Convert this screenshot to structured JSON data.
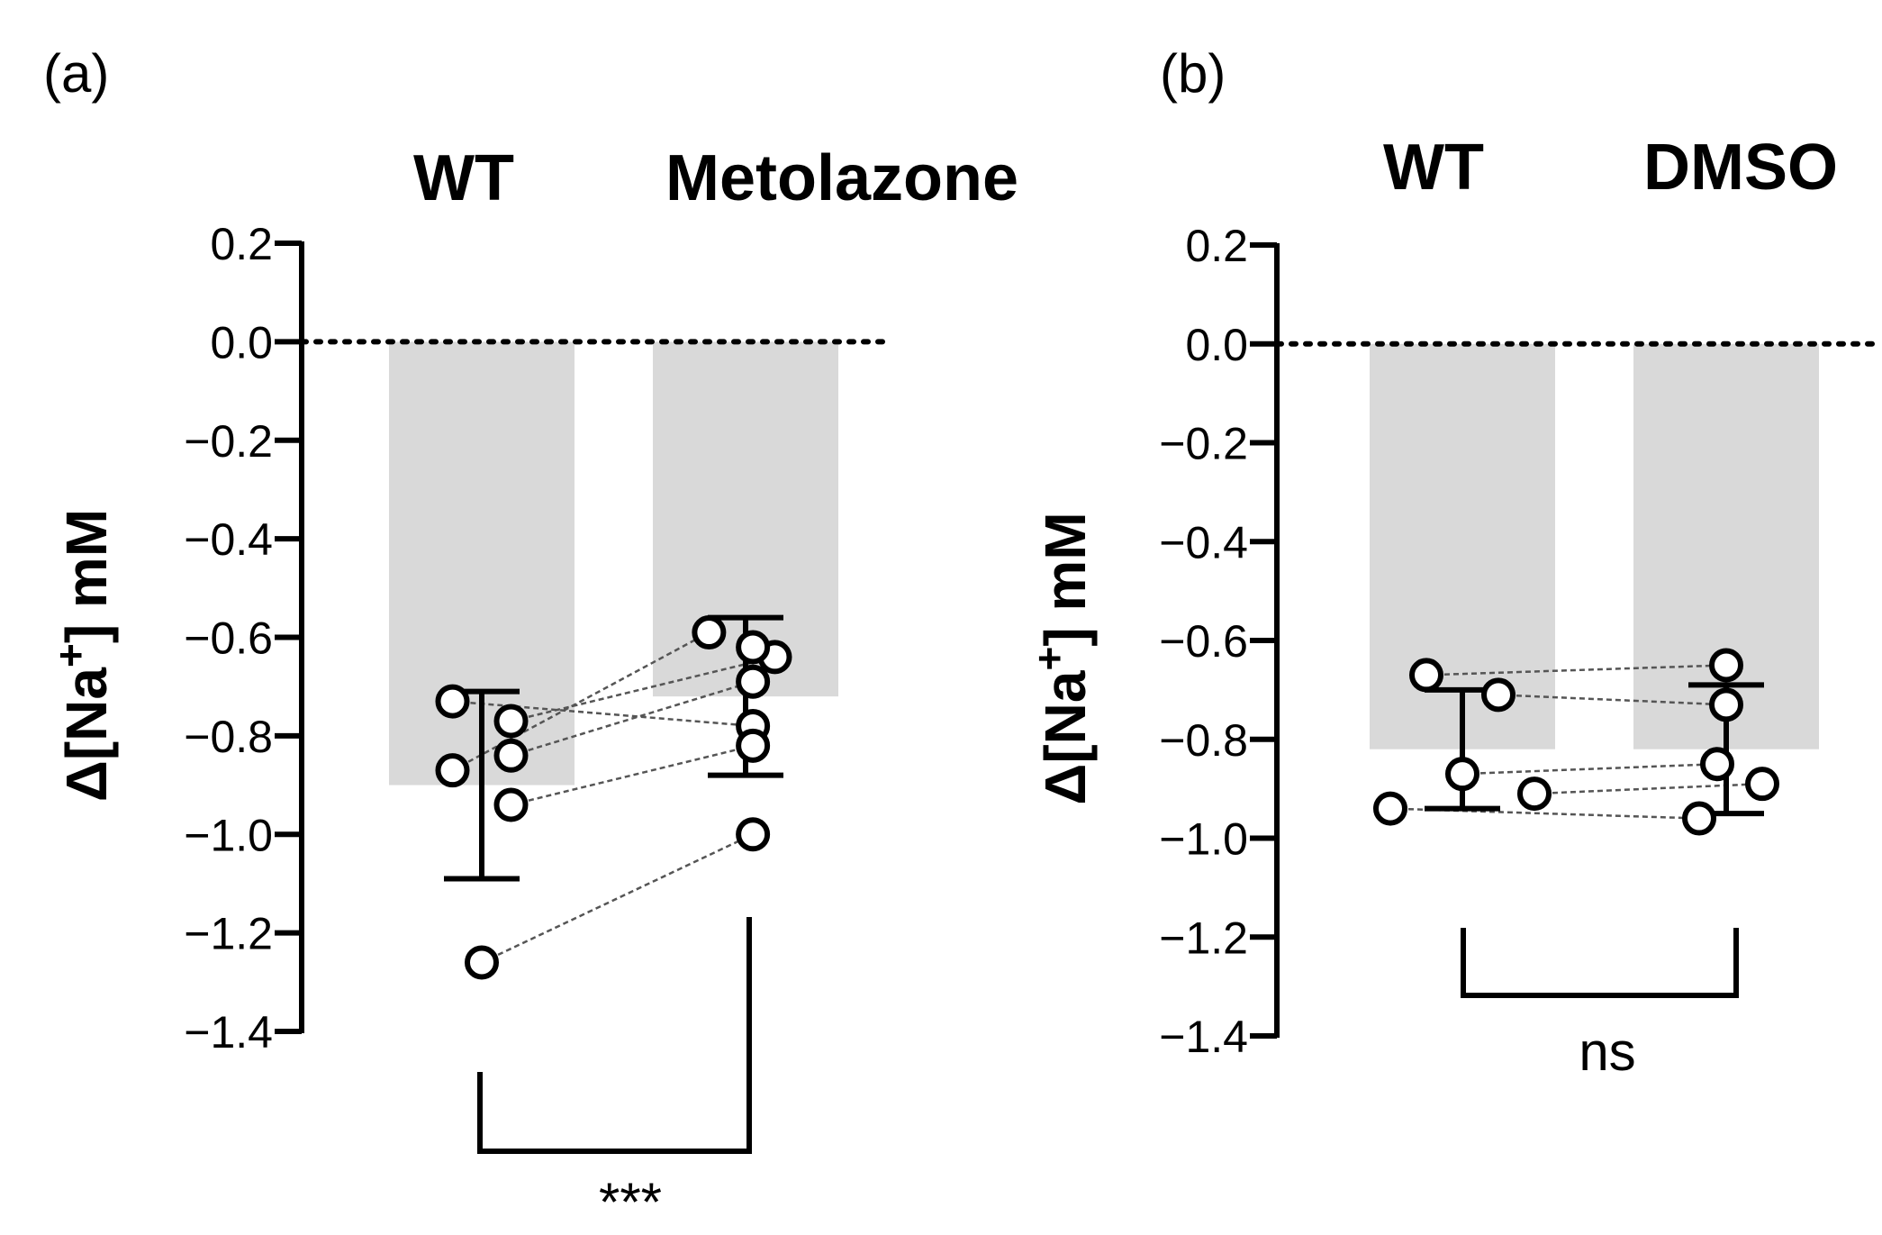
{
  "chart_data": [
    {
      "type": "bar",
      "panel_label": "(a)",
      "categories": [
        "WT",
        "Metolazone"
      ],
      "bar_values": [
        -0.9,
        -0.72
      ],
      "error_bars": [
        {
          "mean": -0.9,
          "upper": -0.71,
          "lower": -1.09
        },
        {
          "mean": -0.72,
          "upper": -0.56,
          "lower": -0.88
        }
      ],
      "paired_points": [
        {
          "x_jitter": [
            -0.2,
            0.05
          ],
          "values": [
            -0.73,
            -0.78
          ]
        },
        {
          "x_jitter": [
            0.2,
            0.2
          ],
          "values": [
            -0.77,
            -0.64
          ]
        },
        {
          "x_jitter": [
            0.2,
            0.05
          ],
          "values": [
            -0.84,
            -0.69
          ]
        },
        {
          "x_jitter": [
            -0.2,
            -0.25
          ],
          "values": [
            -0.87,
            -0.59
          ]
        },
        {
          "x_jitter": [
            0.2,
            0.05
          ],
          "values": [
            -0.94,
            -0.82
          ]
        },
        {
          "x_jitter": [
            0.0,
            0.05
          ],
          "values": [
            -1.26,
            -1.0
          ]
        }
      ],
      "extra_points": [
        {
          "group": 1,
          "x_jitter": 0.05,
          "value": -0.62
        }
      ],
      "ylabel_main": "Δ[Na",
      "ylabel_sup": "+",
      "ylabel_tail": "] mM",
      "ylim": [
        -1.4,
        0.2
      ],
      "yticks": [
        0.2,
        0.0,
        -0.2,
        -0.4,
        -0.6,
        -0.8,
        -1.0,
        -1.2,
        -1.4
      ],
      "ytick_labels": [
        "0.2",
        "0.0",
        "−0.2",
        "−0.4",
        "−0.6",
        "−0.8",
        "−1.0",
        "−1.2",
        "−1.4"
      ],
      "significance": "***"
    },
    {
      "type": "bar",
      "panel_label": "(b)",
      "categories": [
        "WT",
        "DMSO"
      ],
      "bar_values": [
        -0.82,
        -0.82
      ],
      "error_bars": [
        {
          "mean": -0.82,
          "upper": -0.7,
          "lower": -0.94
        },
        {
          "mean": -0.82,
          "upper": -0.69,
          "lower": -0.95
        }
      ],
      "paired_points": [
        {
          "x_jitter": [
            -0.2,
            0.0
          ],
          "values": [
            -0.67,
            -0.65
          ]
        },
        {
          "x_jitter": [
            0.2,
            0.0
          ],
          "values": [
            -0.71,
            -0.73
          ]
        },
        {
          "x_jitter": [
            0.0,
            -0.05
          ],
          "values": [
            -0.87,
            -0.85
          ]
        },
        {
          "x_jitter": [
            0.4,
            0.2
          ],
          "values": [
            -0.91,
            -0.89
          ]
        },
        {
          "x_jitter": [
            -0.4,
            -0.15
          ],
          "values": [
            -0.94,
            -0.96
          ]
        }
      ],
      "extra_points": [],
      "ylabel_main": "Δ[Na",
      "ylabel_sup": "+",
      "ylabel_tail": "] mM",
      "ylim": [
        -1.4,
        0.2
      ],
      "yticks": [
        0.2,
        0.0,
        -0.2,
        -0.4,
        -0.6,
        -0.8,
        -1.0,
        -1.2,
        -1.4
      ],
      "ytick_labels": [
        "0.2",
        "0.0",
        "−0.2",
        "−0.4",
        "−0.6",
        "−0.8",
        "−1.0",
        "−1.2",
        "−1.4"
      ],
      "significance": "ns"
    }
  ]
}
